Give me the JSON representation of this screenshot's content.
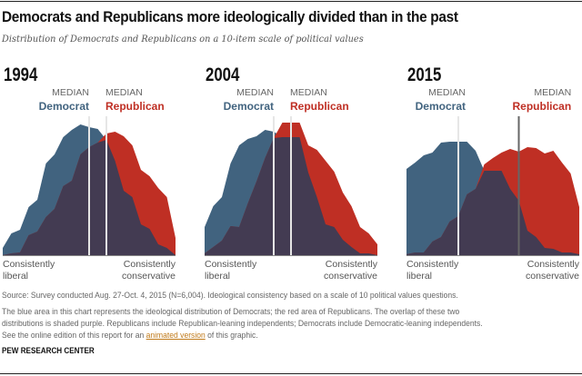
{
  "title": "Democrats and Republicans more ideologically divided than in the past",
  "subtitle": "Distribution of Democrats and Republicans on a 10-item scale of political values",
  "colors": {
    "democrat": "#41637f",
    "republican": "#bf2f24",
    "overlap": "#433b52"
  },
  "chart_data": [
    {
      "type": "area",
      "title": "1994",
      "x": [
        -10,
        -9,
        -8,
        -7,
        -6,
        -5,
        -4,
        -3,
        -2,
        -1,
        0,
        1,
        2,
        3,
        4,
        5,
        6,
        7,
        8,
        9,
        10
      ],
      "series": [
        {
          "name": "Democrat",
          "values": [
            8,
            24,
            28,
            53,
            61,
            101,
            111,
            130,
            138,
            144,
            141,
            139,
            127,
            104,
            71,
            64,
            34,
            29,
            12,
            8,
            0
          ]
        },
        {
          "name": "Republican",
          "values": [
            0,
            2,
            3,
            22,
            26,
            42,
            51,
            76,
            82,
            111,
            119,
            124,
            134,
            136,
            131,
            121,
            94,
            87,
            74,
            64,
            19
          ]
        }
      ],
      "median": {
        "Democrat": 0,
        "Republican": 2
      }
    },
    {
      "type": "area",
      "title": "2004",
      "x": [
        -10,
        -9,
        -8,
        -7,
        -6,
        -5,
        -4,
        -3,
        -2,
        -1,
        0,
        1,
        2,
        3,
        4,
        5,
        6,
        7,
        8,
        9,
        10
      ],
      "series": [
        {
          "name": "Democrat",
          "values": [
            31,
            54,
            64,
            101,
            121,
            128,
            131,
            138,
            136,
            130,
            130,
            130,
            91,
            64,
            34,
            31,
            17,
            9,
            2,
            2,
            0
          ]
        },
        {
          "name": "Republican",
          "values": [
            2,
            9,
            16,
            32,
            31,
            57,
            81,
            107,
            129,
            146,
            146,
            146,
            121,
            116,
            104,
            92,
            69,
            54,
            31,
            24,
            12
          ]
        }
      ],
      "median": {
        "Democrat": -2,
        "Republican": 0
      }
    },
    {
      "type": "area",
      "title": "2015",
      "x": [
        -10,
        -9,
        -8,
        -7,
        -6,
        -5,
        -4,
        -3,
        -2,
        -1,
        0,
        1,
        2,
        3,
        4,
        5,
        6,
        7,
        8,
        9,
        10
      ],
      "series": [
        {
          "name": "Democrat",
          "values": [
            95,
            102,
            110,
            113,
            124,
            125,
            125,
            125,
            115,
            93,
            93,
            93,
            73,
            60,
            27,
            20,
            8,
            7,
            3,
            3,
            1
          ]
        },
        {
          "name": "Republican",
          "values": [
            1,
            3,
            3,
            15,
            20,
            37,
            43,
            67,
            73,
            100,
            107,
            113,
            117,
            114,
            119,
            118,
            112,
            115,
            102,
            90,
            53
          ]
        }
      ],
      "median": {
        "Democrat": -4,
        "Republican": 3
      }
    }
  ],
  "labels": {
    "median": "MEDIAN",
    "democrat": "Democrat",
    "republican": "Republican",
    "left_line1": "Consistently",
    "left_line2": "liberal",
    "right_line1": "Consistently",
    "right_line2": "conservative"
  },
  "footer": {
    "source": "Source: Survey conducted Aug. 27-Oct. 4, 2015 (N=6,004).  Ideological consistency based on a scale of 10 political values questions.",
    "note1": "The blue area in this chart represents the ideological distribution of Democrats; the red area of Republicans. The overlap of these two",
    "note2": "distributions is shaded purple. Republicans include Republican-leaning independents; Democrats include Democratic-leaning independents.",
    "note3_pre": "See the online edition of this report for an ",
    "note3_link": "animated version",
    "note3_post": " of this graphic.",
    "org": "PEW RESEARCH CENTER"
  }
}
